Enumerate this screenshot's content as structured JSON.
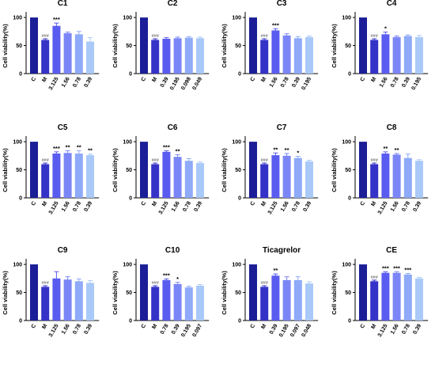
{
  "ylabel": "Cell viability(%)",
  "yticks": [
    0,
    50,
    100
  ],
  "ylim": [
    0,
    110
  ],
  "colors": [
    "#1b1e96",
    "#3532c8",
    "#5a5cf0",
    "#7b86f6",
    "#8eaaf8",
    "#a9c9f8",
    "#c4dcfa"
  ],
  "chart_data": [
    {
      "type": "bar",
      "title": "C1",
      "categories": [
        "C",
        "M",
        "3.125",
        "1.56",
        "0.78",
        "0.39"
      ],
      "values": [
        100,
        60,
        85,
        72,
        70,
        57
      ],
      "errors": [
        0,
        2,
        5,
        2,
        5,
        7
      ],
      "annotations": [
        "",
        "###",
        "***",
        "",
        "",
        ""
      ]
    },
    {
      "type": "bar",
      "title": "C2",
      "categories": [
        "C",
        "M",
        "0.39",
        "0.195",
        "0.098",
        "0.049"
      ],
      "values": [
        100,
        60,
        62,
        63,
        64,
        63
      ],
      "errors": [
        0,
        2,
        2,
        2,
        2,
        2
      ],
      "annotations": [
        "",
        "###",
        "",
        "",
        "",
        ""
      ]
    },
    {
      "type": "bar",
      "title": "C3",
      "categories": [
        "C",
        "M",
        "1.56",
        "0.78",
        "0.39",
        "0.195"
      ],
      "values": [
        100,
        60,
        77,
        68,
        63,
        65
      ],
      "errors": [
        0,
        2,
        3,
        3,
        3,
        2
      ],
      "annotations": [
        "",
        "###",
        "***",
        "",
        "",
        ""
      ]
    },
    {
      "type": "bar",
      "title": "C4",
      "categories": [
        "C",
        "M",
        "1.56",
        "0.78",
        "0.39",
        "0.195"
      ],
      "values": [
        100,
        60,
        70,
        65,
        67,
        65
      ],
      "errors": [
        0,
        2,
        4,
        2,
        2,
        3
      ],
      "annotations": [
        "",
        "###",
        "*",
        "",
        "",
        ""
      ]
    },
    {
      "type": "bar",
      "title": "C5",
      "categories": [
        "C",
        "M",
        "3.125",
        "1.56",
        "0.78",
        "0.39"
      ],
      "values": [
        100,
        60,
        79,
        80,
        79,
        76
      ],
      "errors": [
        0,
        2,
        3,
        4,
        5,
        2
      ],
      "annotations": [
        "",
        "###",
        "***",
        "**",
        "**",
        "**"
      ]
    },
    {
      "type": "bar",
      "title": "C6",
      "categories": [
        "C",
        "M",
        "3.125",
        "1.56",
        "0.78",
        "0.39"
      ],
      "values": [
        100,
        60,
        82,
        73,
        66,
        62
      ],
      "errors": [
        0,
        2,
        2,
        4,
        4,
        2
      ],
      "annotations": [
        "",
        "###",
        "***",
        "**",
        "",
        ""
      ]
    },
    {
      "type": "bar",
      "title": "C7",
      "categories": [
        "C",
        "M",
        "3.125",
        "1.56",
        "0.78",
        "0.39"
      ],
      "values": [
        100,
        60,
        76,
        75,
        71,
        65
      ],
      "errors": [
        0,
        2,
        4,
        4,
        3,
        2
      ],
      "annotations": [
        "",
        "###",
        "**",
        "**",
        "*",
        ""
      ]
    },
    {
      "type": "bar",
      "title": "C8",
      "categories": [
        "C",
        "M",
        "3.125",
        "1.56",
        "0.78",
        "0.39"
      ],
      "values": [
        100,
        60,
        79,
        77,
        71,
        66
      ],
      "errors": [
        0,
        2,
        3,
        2,
        7,
        2
      ],
      "annotations": [
        "",
        "###",
        "**",
        "**",
        "",
        ""
      ]
    },
    {
      "type": "bar",
      "title": "C9",
      "categories": [
        "C",
        "M",
        "3.125",
        "1.56",
        "0.78",
        "0.39"
      ],
      "values": [
        100,
        60,
        75,
        73,
        70,
        67
      ],
      "errors": [
        0,
        2,
        12,
        5,
        4,
        4
      ],
      "annotations": [
        "",
        "###",
        "",
        "",
        "",
        ""
      ]
    },
    {
      "type": "bar",
      "title": "C10",
      "categories": [
        "C",
        "M",
        "0.78",
        "0.39",
        "0.195",
        "0.097"
      ],
      "values": [
        100,
        60,
        72,
        65,
        59,
        62
      ],
      "errors": [
        0,
        2,
        2,
        3,
        2,
        2
      ],
      "annotations": [
        "",
        "###",
        "***",
        "*",
        "",
        ""
      ]
    },
    {
      "type": "bar",
      "title": "Ticagrelor",
      "categories": [
        "C",
        "M",
        "0.39",
        "0.195",
        "0.097",
        "0.048"
      ],
      "values": [
        100,
        60,
        80,
        72,
        72,
        66
      ],
      "errors": [
        0,
        2,
        3,
        6,
        6,
        3
      ],
      "annotations": [
        "",
        "###",
        "**",
        "",
        "",
        ""
      ]
    },
    {
      "type": "bar",
      "title": "CE",
      "categories": [
        "C",
        "M",
        "3.125",
        "1.56",
        "0.78",
        "0.39"
      ],
      "values": [
        100,
        70,
        85,
        85,
        82,
        75
      ],
      "errors": [
        0,
        2,
        2,
        2,
        2,
        2
      ],
      "annotations": [
        "",
        "###",
        "***",
        "***",
        "***",
        ""
      ]
    }
  ]
}
